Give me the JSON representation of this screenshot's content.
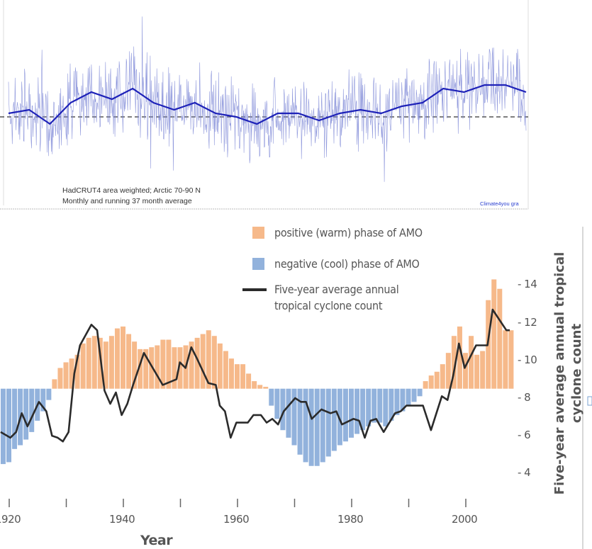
{
  "top_chart": {
    "caption_line1": "HadCRUT4 area weighted; Arctic 70-90 N",
    "caption_line2": "Monthly and running 37 month average",
    "credit": "Climate4you gra",
    "colors": {
      "monthly": "#7b86d6",
      "running": "#1e22b8",
      "zero_line": "#333333",
      "credit": "#2a3fd0"
    }
  },
  "chart_data": [
    {
      "type": "line",
      "title": "",
      "series": [
        {
          "name": "Running 37 month average",
          "values": [
            0.25,
            0.5,
            -0.5,
            1.0,
            1.75,
            1.25,
            2.0,
            1.0,
            0.5,
            1.0,
            0.25,
            0.0,
            -0.5,
            0.25,
            0.25,
            -0.25,
            0.25,
            0.5,
            0.25,
            0.75,
            1.0,
            2.0,
            1.75,
            2.25,
            2.25,
            1.75
          ]
        }
      ],
      "reference_line": 0,
      "xlabel": "",
      "ylabel": ""
    },
    {
      "type": "bar+line",
      "xlabel": "Year",
      "ylabel": "Five-year average annual tropical cyclone count",
      "x_ticks": [
        "1920",
        "1940",
        "1960",
        "1980",
        "2000"
      ],
      "x_minor_ticks": [
        1930,
        1950,
        1970,
        1990
      ],
      "y_ticks": [
        "14",
        "12",
        "10",
        "8",
        "6",
        "4"
      ],
      "ylim": [
        3,
        15
      ],
      "xlim": [
        1918,
        2009
      ],
      "bar_baseline": 8.5,
      "legend": {
        "positive": "positive (warm) phase of AMO",
        "negative": "negative (cool) phase of AMO",
        "line_1": "Five-year average annual",
        "line_2": "tropical cyclone count"
      },
      "colors": {
        "positive": "#f6b98a",
        "negative": "#92b2dc",
        "line": "#2b2b2b"
      },
      "amo_bars": {
        "years": [
          1918,
          1919,
          1920,
          1921,
          1922,
          1923,
          1924,
          1925,
          1926,
          1927,
          1928,
          1929,
          1930,
          1931,
          1932,
          1933,
          1934,
          1935,
          1936,
          1937,
          1938,
          1939,
          1940,
          1941,
          1942,
          1943,
          1944,
          1945,
          1946,
          1947,
          1948,
          1949,
          1950,
          1951,
          1952,
          1953,
          1954,
          1955,
          1956,
          1957,
          1958,
          1959,
          1960,
          1961,
          1962,
          1963,
          1964,
          1965,
          1966,
          1967,
          1968,
          1969,
          1970,
          1971,
          1972,
          1973,
          1974,
          1975,
          1976,
          1977,
          1978,
          1979,
          1980,
          1981,
          1982,
          1983,
          1984,
          1985,
          1986,
          1987,
          1988,
          1989,
          1990,
          1991,
          1992,
          1993,
          1994,
          1995,
          1996,
          1997,
          1998,
          1999,
          2000,
          2001,
          2002,
          2003,
          2004,
          2005,
          2006,
          2007,
          2008
        ],
        "tops": [
          4.6,
          4.5,
          4.6,
          5.3,
          5.5,
          5.8,
          6.2,
          6.8,
          7.3,
          7.9,
          9.0,
          9.6,
          9.9,
          10.1,
          10.3,
          10.9,
          11.2,
          11.3,
          11.2,
          11.0,
          11.3,
          11.7,
          11.8,
          11.4,
          11.0,
          10.6,
          10.6,
          10.7,
          10.8,
          11.1,
          11.1,
          10.7,
          10.7,
          10.8,
          11.0,
          11.2,
          11.4,
          11.6,
          11.3,
          10.9,
          10.5,
          10.1,
          9.8,
          9.8,
          9.3,
          8.9,
          8.7,
          8.6,
          7.6,
          6.9,
          6.3,
          5.9,
          5.5,
          5.0,
          4.6,
          4.4,
          4.4,
          4.6,
          4.9,
          5.2,
          5.5,
          5.7,
          5.9,
          6.1,
          6.3,
          6.5,
          6.7,
          6.7,
          6.5,
          6.8,
          7.1,
          7.3,
          7.6,
          7.8,
          8.1,
          8.9,
          9.2,
          9.4,
          9.8,
          10.4,
          11.3,
          11.8,
          10.4,
          11.3,
          10.3,
          10.5,
          13.2,
          14.3,
          13.8,
          11.6,
          11.6
        ]
      },
      "cyclone_line": {
        "years": [
          1918.5,
          1920.2,
          1921.2,
          1922.2,
          1923.2,
          1925.2,
          1926.5,
          1927.5,
          1928.5,
          1929.4,
          1930.4,
          1931.4,
          1932.4,
          1934.4,
          1935.4,
          1936.7,
          1937.7,
          1938.7,
          1939.7,
          1940.7,
          1941.7,
          1943.6,
          1946.9,
          1949.3,
          1949.9,
          1950.9,
          1951.9,
          1952.9,
          1954.9,
          1956.2,
          1956.9,
          1957.8,
          1958.8,
          1959.8,
          1961.8,
          1962.8,
          1964.1,
          1965.1,
          1966.1,
          1967.1,
          1968.1,
          1970.1,
          1971.1,
          1972.0,
          1973.0,
          1974.7,
          1976.3,
          1977.3,
          1978.3,
          1980.3,
          1981.3,
          1982.3,
          1983.3,
          1984.3,
          1985.6,
          1987.6,
          1988.6,
          1989.6,
          1992.5,
          1993.9,
          1995.8,
          1996.8,
          1997.8,
          1998.8,
          1999.8,
          2001.8,
          2003.8,
          2004.7,
          2007.1,
          2007.7
        ],
        "values": [
          6.2,
          5.9,
          6.2,
          7.2,
          6.5,
          7.8,
          7.3,
          6.0,
          5.9,
          5.7,
          6.2,
          9.3,
          10.8,
          11.9,
          11.6,
          8.4,
          7.7,
          8.3,
          7.1,
          7.7,
          8.7,
          10.4,
          8.7,
          9.0,
          9.9,
          9.6,
          10.7,
          10.1,
          8.8,
          8.7,
          7.6,
          7.3,
          5.9,
          6.7,
          6.7,
          7.1,
          7.1,
          6.7,
          6.9,
          6.6,
          7.3,
          8.0,
          7.8,
          7.8,
          6.9,
          7.4,
          7.2,
          7.3,
          6.6,
          6.9,
          6.8,
          5.9,
          6.8,
          6.9,
          6.2,
          7.2,
          7.3,
          7.6,
          7.6,
          6.3,
          8.1,
          7.9,
          9.2,
          10.9,
          9.6,
          10.8,
          10.8,
          12.7,
          11.6,
          11.6
        ]
      }
    }
  ]
}
